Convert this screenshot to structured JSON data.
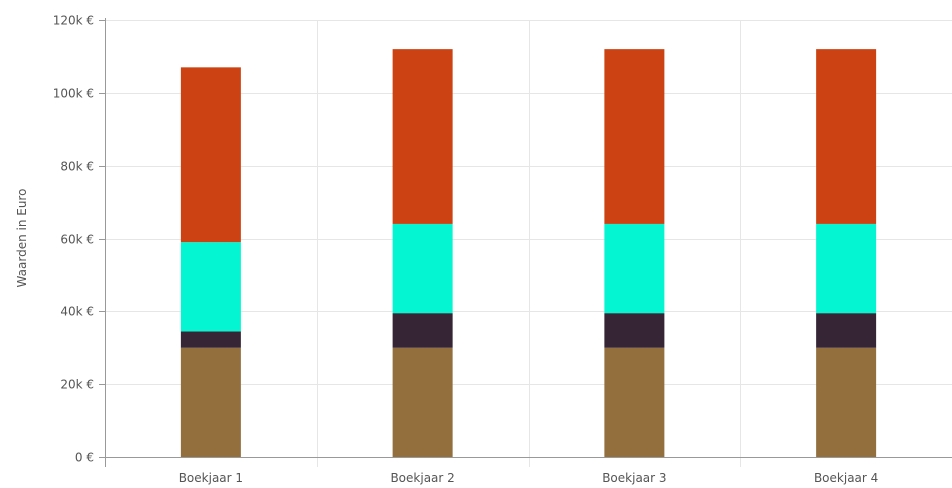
{
  "chart_data": {
    "type": "bar",
    "stacked": true,
    "categories": [
      "Boekjaar 1",
      "Boekjaar 2",
      "Boekjaar 3",
      "Boekjaar 4"
    ],
    "series": [
      {
        "color": "#936f3e",
        "values": [
          30000,
          30000,
          30000,
          30000
        ]
      },
      {
        "color": "#352535",
        "values": [
          4500,
          9500,
          9500,
          9500
        ]
      },
      {
        "color": "#04f5d1",
        "values": [
          24500,
          24500,
          24500,
          24500
        ]
      },
      {
        "color": "#cd4212",
        "values": [
          48000,
          48000,
          48000,
          48000
        ]
      }
    ],
    "xlabel": "",
    "ylabel": "Waarden in Euro",
    "ylim": [
      0,
      120000
    ],
    "yticks": [
      0,
      20000,
      40000,
      60000,
      80000,
      100000,
      120000
    ],
    "ytick_labels": [
      "0 €",
      "20k €",
      "40k €",
      "60k €",
      "80k €",
      "100k €",
      "120k €"
    ],
    "grid": true,
    "legend": "none"
  }
}
